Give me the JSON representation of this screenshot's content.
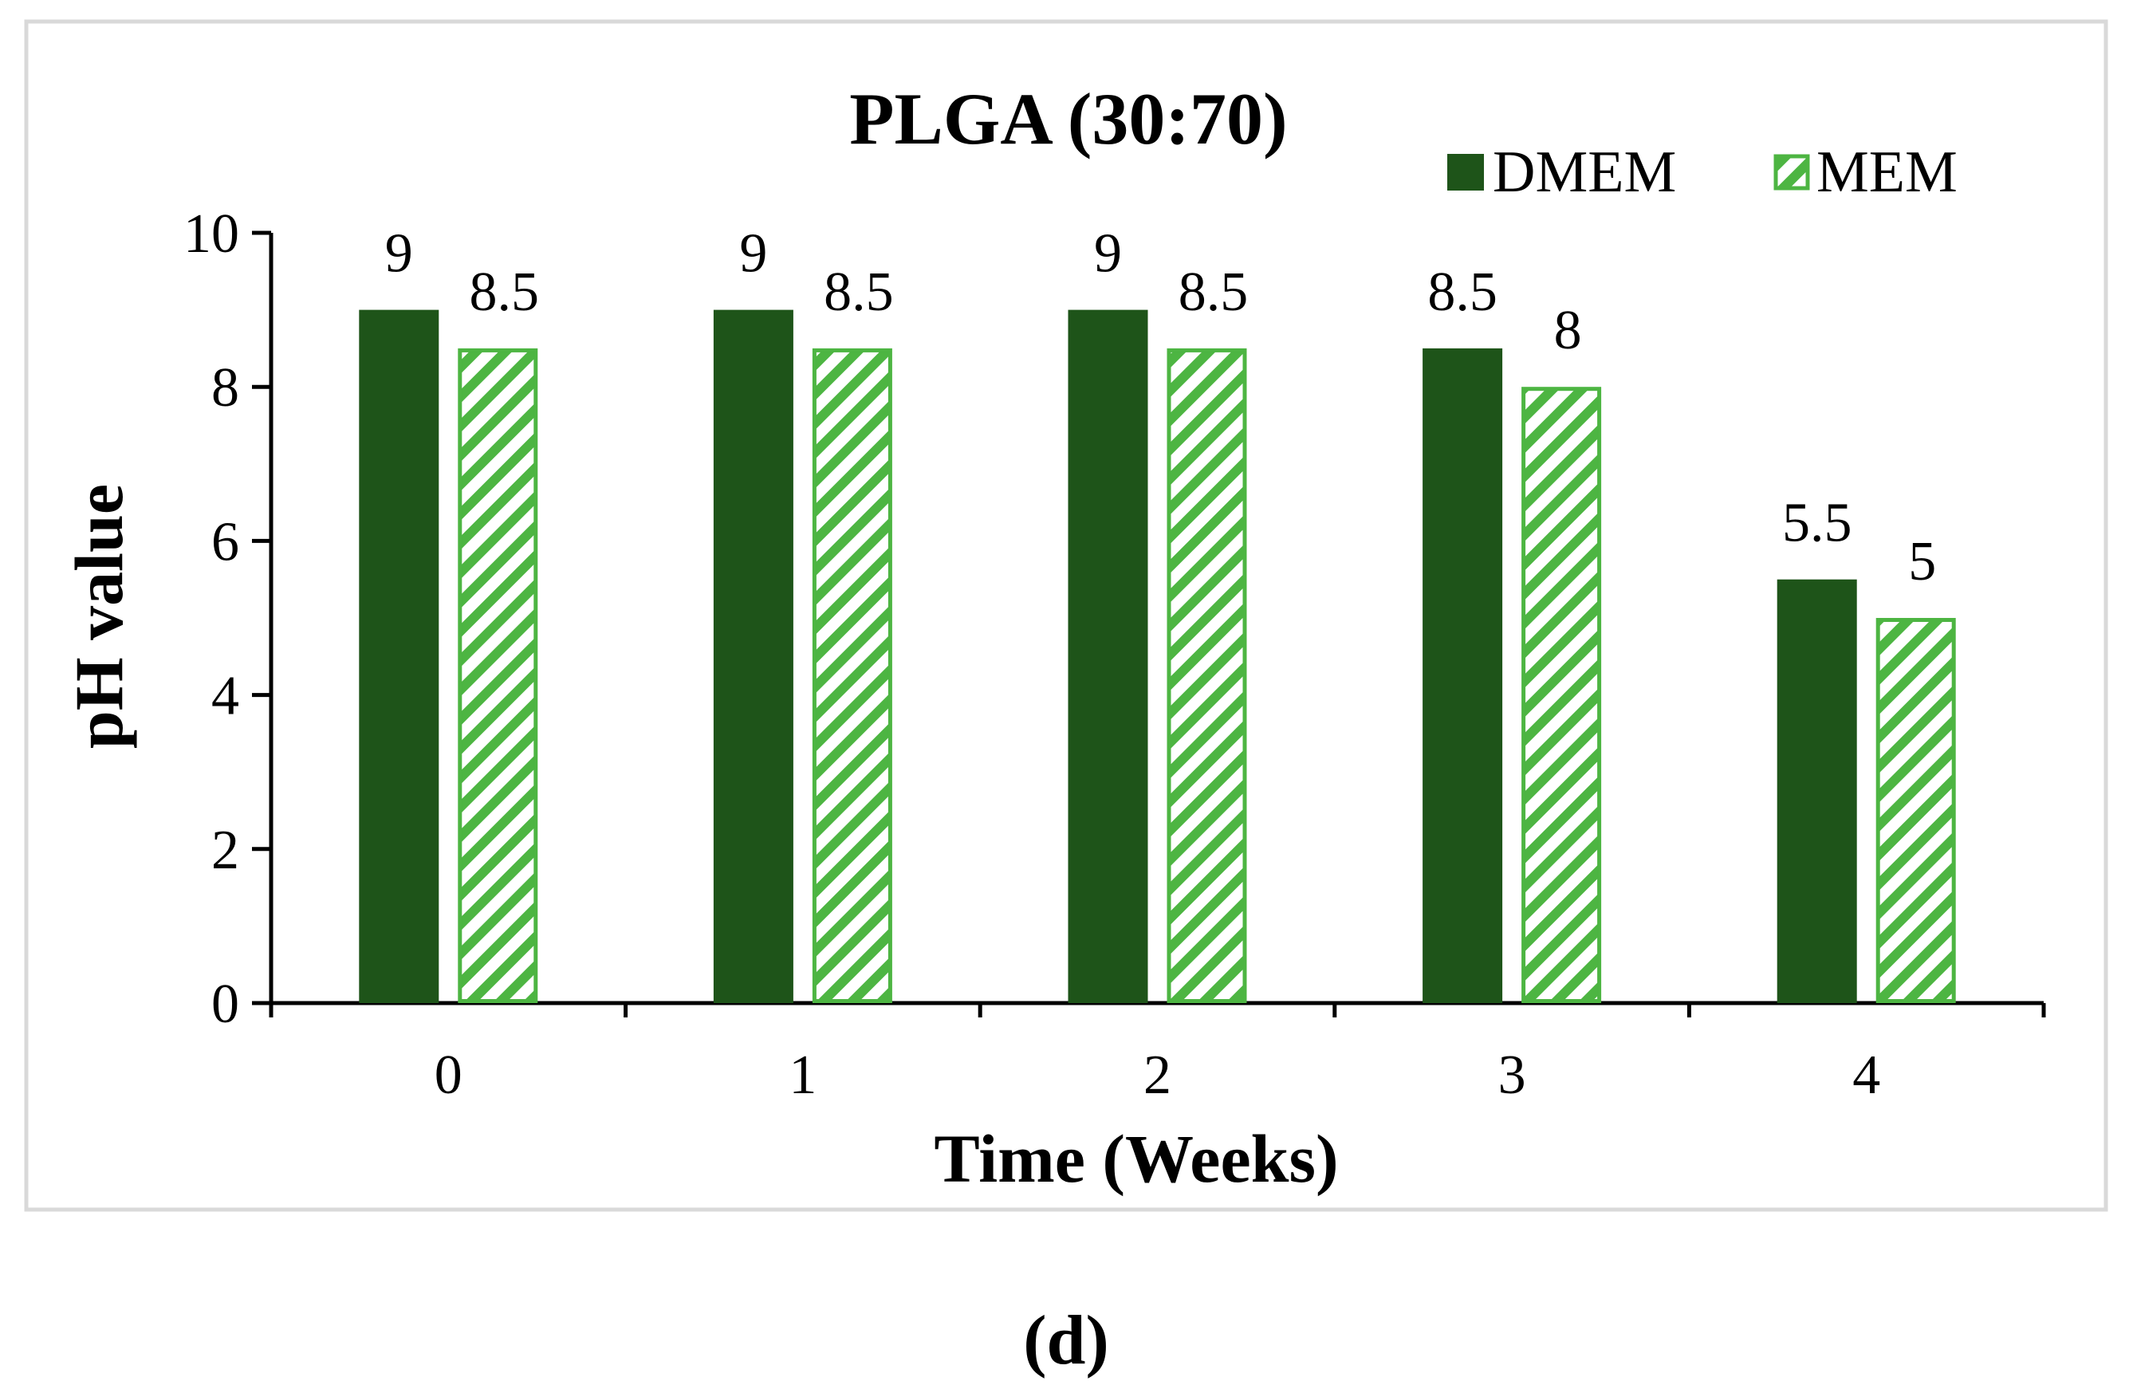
{
  "chart_data": {
    "type": "bar",
    "title": "PLGA (30:70)",
    "xlabel": "Time (Weeks)",
    "ylabel": "pH value",
    "categories": [
      "0",
      "1",
      "2",
      "3",
      "4"
    ],
    "series": [
      {
        "name": "DMEM",
        "values": [
          9,
          9,
          9,
          8.5,
          5.5
        ],
        "labels": [
          "9",
          "9",
          "9",
          "8.5",
          "5.5"
        ],
        "color": "#1e5419",
        "fill": "solid"
      },
      {
        "name": "MEM",
        "values": [
          8.5,
          8.5,
          8.5,
          8,
          5
        ],
        "labels": [
          "8.5",
          "8.5",
          "8.5",
          "8",
          "5"
        ],
        "color": "#4db542",
        "fill": "hatched"
      }
    ],
    "ylim": [
      0,
      10
    ],
    "yticks": [
      "0",
      "2",
      "4",
      "6",
      "8",
      "10"
    ],
    "grid": false,
    "legend_position": "top-right"
  },
  "caption": "(d)"
}
